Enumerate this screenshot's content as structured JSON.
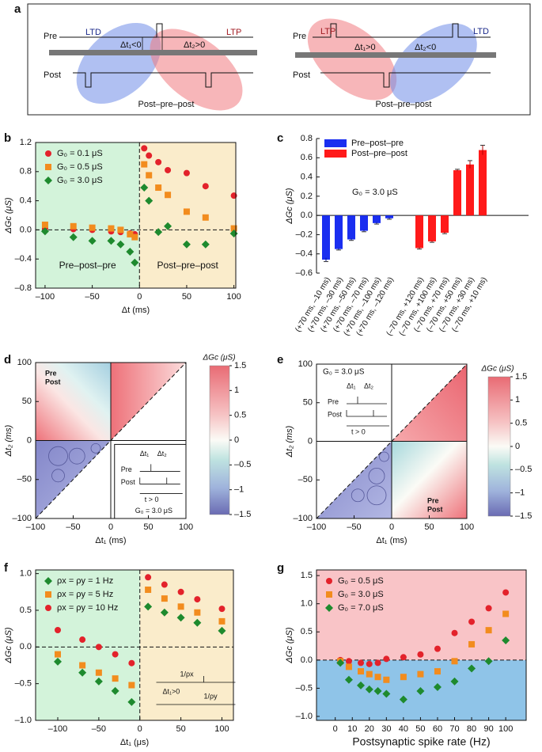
{
  "panels": [
    "a",
    "b",
    "c",
    "d",
    "e",
    "f",
    "g"
  ],
  "panel_a": {
    "left": {
      "pre": "Pre",
      "post": "Post",
      "ltd": "LTD",
      "ltp": "LTP",
      "dt1": "Δt₁<0",
      "dt2": "Δt₂>0",
      "caption": "Post–pre–post"
    },
    "right": {
      "pre": "Pre",
      "post": "Post",
      "ltd": "LTD",
      "ltp": "LTP",
      "dt1": "Δt₁>0",
      "dt2": "Δt₂<0",
      "caption": "Post–pre–post"
    }
  },
  "chart_data": [
    {
      "type": "scatter",
      "xlabel": "Δt (ms)",
      "ylabel": "ΔGc (μS)",
      "xlim": [
        -110,
        102
      ],
      "xticks": [
        {
          "value": -100,
          "label": "–100"
        },
        {
          "value": -50,
          "label": "–50"
        },
        0,
        50,
        100
      ],
      "ylim": [
        -0.8,
        1.2
      ],
      "yticks": [
        {
          "value": -0.8,
          "label": "–0.8"
        },
        {
          "value": -0.4,
          "label": "–0.4"
        },
        {
          "value": 0,
          "label": "0.0"
        },
        0.4,
        0.8,
        1.2
      ],
      "shade": "x",
      "shade_colors": [
        "#d3f3da",
        "#faeccb"
      ],
      "legend": "upper left",
      "annotations": [
        "Pre–post–pre",
        "Post–pre–post"
      ],
      "x": [
        -100,
        -70,
        -50,
        -30,
        -20,
        -10,
        -5,
        5,
        10,
        20,
        30,
        50,
        70,
        100
      ],
      "series": [
        {
          "name": "G₀ = 0.1 μS",
          "color": "#e3222b",
          "marker": "circle",
          "values": [
            0.02,
            0.01,
            0.0,
            -0.02,
            -0.03,
            -0.05,
            -0.06,
            1.12,
            1.02,
            0.93,
            0.82,
            0.78,
            0.6,
            0.47
          ]
        },
        {
          "name": "G₀ = 0.5 μS",
          "color": "#f28c1e",
          "marker": "square",
          "values": [
            0.07,
            0.05,
            0.03,
            0.02,
            0.0,
            -0.06,
            -0.1,
            0.9,
            0.75,
            0.58,
            0.48,
            0.25,
            0.17,
            0.02
          ]
        },
        {
          "name": "G₀ = 3.0 μS",
          "color": "#1e8a2e",
          "marker": "diamond",
          "values": [
            -0.02,
            -0.1,
            -0.15,
            -0.15,
            -0.2,
            -0.3,
            -0.45,
            0.58,
            0.4,
            -0.03,
            0.05,
            -0.2,
            -0.2,
            -0.05
          ]
        }
      ]
    },
    {
      "type": "bar",
      "ylabel": "ΔGc (μS)",
      "annotation": "G₀ = 3.0 μS",
      "legend": "upper left",
      "ylim": [
        -0.6,
        0.8
      ],
      "yticks": [
        {
          "value": -0.6,
          "label": "–0.6"
        },
        {
          "value": -0.4,
          "label": "–0.4"
        },
        {
          "value": -0.2,
          "label": "–0.2"
        },
        {
          "value": 0,
          "label": "0.0"
        },
        0.2,
        0.4,
        0.6,
        0.8
      ],
      "categories": [
        "(+70 ms, –10 ms)",
        "(+70 ms, –30 ms)",
        "(+70 ms, –50 ms)",
        "(+70 ms, –70 ms)",
        "(+70 ms, –100 ms)",
        "(+70 ms, –120 ms)",
        "(–70 ms, +120 ms)",
        "(–70 ms, +100 ms)",
        "(–70 ms, +70 ms)",
        "(–70 ms, +50 ms)",
        "(–70 ms, +30 ms)",
        "(–70 ms, +10 ms)"
      ],
      "series": [
        {
          "name": "Pre–post–pre",
          "color": "#1a2ef0",
          "values": [
            -0.46,
            -0.35,
            -0.25,
            -0.16,
            -0.08,
            -0.03,
            null,
            null,
            null,
            null,
            null,
            null
          ],
          "errors": [
            0.02,
            0.01,
            0.01,
            0.01,
            0.01,
            0.01,
            null,
            null,
            null,
            null,
            null,
            null
          ]
        },
        {
          "name": "Post–pre–post",
          "color": "#ff1a1a",
          "values": [
            null,
            null,
            null,
            null,
            null,
            null,
            -0.34,
            -0.27,
            -0.18,
            0.47,
            0.53,
            0.68
          ],
          "errors": [
            null,
            null,
            null,
            null,
            null,
            null,
            0.01,
            0.01,
            0.01,
            0.01,
            0.04,
            0.05
          ]
        }
      ]
    },
    {
      "type": "heatmap",
      "xlabel": "Δt₁ (ms)",
      "ylabel": "Δt₂ (ms)",
      "colorbar_label": "ΔGc (μS)",
      "xlim": [
        -100,
        100
      ],
      "xticks": [
        {
          "value": -100,
          "label": "–100"
        },
        {
          "value": -50,
          "label": "–50"
        },
        0,
        50,
        100
      ],
      "ylim": [
        -100,
        100
      ],
      "yticks": [
        {
          "value": -100,
          "label": "–100"
        },
        {
          "value": -50,
          "label": "–50"
        },
        0,
        50,
        100
      ],
      "clim": [
        -1.5,
        1.5
      ],
      "cticks": [
        {
          "value": -1.5,
          "label": "–1.5"
        },
        {
          "value": -1,
          "label": "–1"
        },
        {
          "value": -0.5,
          "label": "–0.5"
        },
        0,
        0.5,
        1,
        1.5
      ],
      "corner_labels": [
        "Pre",
        "Post"
      ],
      "inset": {
        "dt1": "Δt₁",
        "dt2": "Δt₂",
        "pre": "Pre",
        "post": "Post",
        "condition": "t > 0",
        "g0": "G₀ = 3.0 μS"
      }
    },
    {
      "type": "heatmap",
      "xlabel": "Δt₁ (ms)",
      "ylabel": "Δt₂ (ms)",
      "colorbar_label": "ΔGc (μS)",
      "xlim": [
        -100,
        100
      ],
      "xticks": [
        {
          "value": -100,
          "label": "–100"
        },
        {
          "value": -50,
          "label": "–50"
        },
        0,
        50,
        100
      ],
      "ylim": [
        -100,
        100
      ],
      "yticks": [
        {
          "value": -100,
          "label": "–100"
        },
        {
          "value": -50,
          "label": "–50"
        },
        0,
        50,
        100
      ],
      "clim": [
        -1.5,
        1.5
      ],
      "cticks": [
        {
          "value": -1.5,
          "label": "–1.5"
        },
        {
          "value": -1,
          "label": "–1"
        },
        {
          "value": -0.5,
          "label": "–0.5"
        },
        0,
        0.5,
        1,
        1.5
      ],
      "corner_labels": [
        "Pre",
        "Post"
      ],
      "inset": {
        "dt1": "Δt₁",
        "dt2": "Δt₂",
        "pre": "Pre",
        "post": "Post",
        "condition": "t > 0",
        "g0": "G₀ = 3.0 μS"
      }
    },
    {
      "type": "scatter",
      "xlabel": "Δt₁ (μs)",
      "ylabel": "ΔGc (μS)",
      "xlim": [
        -127,
        114
      ],
      "xticks": [
        {
          "value": -100,
          "label": "–100"
        },
        {
          "value": -50,
          "label": "–50"
        },
        0,
        50,
        100
      ],
      "ylim": [
        -1.0,
        1.05
      ],
      "yticks": [
        {
          "value": -1,
          "label": "–1.0"
        },
        {
          "value": -0.5,
          "label": "–0.5"
        },
        {
          "value": 0,
          "label": "0.0"
        },
        0.5,
        {
          "value": 1,
          "label": "1.0"
        }
      ],
      "shade": "x",
      "shade_colors": [
        "#d3f3da",
        "#faeccb"
      ],
      "legend": "upper left",
      "inset": [
        "1/ρx",
        "Δt₁>0",
        "1/ρy"
      ],
      "x": [
        -100,
        -70,
        -50,
        -30,
        -10,
        10,
        30,
        50,
        70,
        100
      ],
      "series": [
        {
          "name": "ρx = ρy = 1 Hz",
          "color": "#1e8a2e",
          "marker": "diamond",
          "values": [
            -0.2,
            -0.35,
            -0.47,
            -0.6,
            -0.75,
            0.55,
            0.47,
            0.4,
            0.33,
            0.22
          ]
        },
        {
          "name": "ρx = ρy = 5 Hz",
          "color": "#f28c1e",
          "marker": "square",
          "values": [
            -0.1,
            -0.25,
            -0.35,
            -0.43,
            -0.52,
            0.78,
            0.66,
            0.55,
            0.47,
            0.35
          ]
        },
        {
          "name": "ρx = ρy = 10 Hz",
          "color": "#e3222b",
          "marker": "circle",
          "values": [
            0.23,
            0.1,
            0.0,
            -0.1,
            -0.22,
            0.95,
            0.85,
            0.75,
            0.65,
            0.52
          ]
        }
      ]
    },
    {
      "type": "scatter",
      "xlabel": "Postsynaptic spike rate (Hz)",
      "ylabel": "ΔGc (μS)",
      "xlim": [
        -11,
        112
      ],
      "xticks": [
        0,
        10,
        20,
        30,
        40,
        50,
        60,
        70,
        80,
        90,
        100
      ],
      "ylim": [
        -1.07,
        1.6
      ],
      "yticks": [
        {
          "value": -1,
          "label": "–1.0"
        },
        {
          "value": -0.5,
          "label": "–0.5"
        },
        {
          "value": 0,
          "label": "0.0"
        },
        0.5,
        {
          "value": 1,
          "label": "1.0"
        },
        1.5
      ],
      "shade": "y",
      "shade_colors": [
        "#8fc4e8",
        "#f9c4c7"
      ],
      "legend": "upper left",
      "x": [
        3,
        8,
        15,
        20,
        25,
        30,
        40,
        50,
        60,
        70,
        80,
        90,
        100
      ],
      "series": [
        {
          "name": "G₀ = 0.5 μS",
          "color": "#e3222b",
          "marker": "circle",
          "values": [
            0.0,
            -0.02,
            -0.05,
            -0.07,
            -0.05,
            0.02,
            0.05,
            0.1,
            0.2,
            0.48,
            0.68,
            0.92,
            1.2
          ]
        },
        {
          "name": "G₀ = 3.0 μS",
          "color": "#f28c1e",
          "marker": "square",
          "values": [
            -0.02,
            -0.12,
            -0.2,
            -0.25,
            -0.3,
            -0.35,
            -0.3,
            -0.25,
            -0.2,
            -0.02,
            0.28,
            0.53,
            0.82
          ]
        },
        {
          "name": "G₀ = 7.0 μS",
          "color": "#1e8a2e",
          "marker": "diamond",
          "values": [
            -0.05,
            -0.35,
            -0.45,
            -0.52,
            -0.55,
            -0.6,
            -0.7,
            -0.55,
            -0.48,
            -0.38,
            -0.15,
            -0.02,
            0.35
          ]
        }
      ]
    }
  ]
}
